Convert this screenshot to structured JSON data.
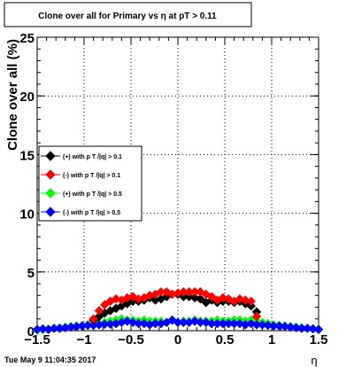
{
  "chart_data": {
    "type": "scatter",
    "title": "Clone  over all for Primary vs   η at pT > 0.11",
    "xlabel": "η",
    "ylabel": "Clone  over all (%)",
    "xlim": [
      -1.5,
      1.5
    ],
    "ylim": [
      0,
      25
    ],
    "x_ticks": [
      "−1.5",
      "−1",
      "−0.5",
      "0",
      "0.5",
      "1",
      "1.5"
    ],
    "y_ticks": [
      "0",
      "5",
      "10",
      "15",
      "20",
      "25"
    ],
    "grid": true,
    "legend_position": "left-middle",
    "series": [
      {
        "name": "(+) with p T /|q| > 0.1",
        "color": "#000000",
        "x": [
          -0.9,
          -0.84,
          -0.78,
          -0.72,
          -0.66,
          -0.6,
          -0.54,
          -0.48,
          -0.42,
          -0.36,
          -0.3,
          -0.24,
          -0.18,
          -0.12,
          -0.06,
          0.0,
          0.06,
          0.12,
          0.18,
          0.24,
          0.3,
          0.36,
          0.42,
          0.48,
          0.54,
          0.6,
          0.66,
          0.72,
          0.78,
          0.84
        ],
        "y": [
          0.9,
          1.2,
          1.5,
          1.7,
          1.9,
          2.1,
          2.3,
          2.5,
          2.5,
          2.6,
          2.8,
          2.6,
          2.7,
          2.9,
          3.1,
          3.1,
          2.9,
          2.9,
          2.8,
          2.7,
          2.4,
          2.6,
          2.4,
          2.5,
          2.5,
          2.4,
          2.5,
          2.3,
          2.1,
          1.6
        ]
      },
      {
        "name": "(-) with p T /|q| > 0.1",
        "color": "#ff0000",
        "x": [
          -0.9,
          -0.84,
          -0.78,
          -0.72,
          -0.66,
          -0.6,
          -0.54,
          -0.48,
          -0.42,
          -0.36,
          -0.3,
          -0.24,
          -0.18,
          -0.12,
          -0.06,
          0.0,
          0.06,
          0.12,
          0.18,
          0.24,
          0.3,
          0.36,
          0.42,
          0.48,
          0.54,
          0.6,
          0.66,
          0.72,
          0.78,
          0.84
        ],
        "y": [
          1.0,
          1.7,
          2.2,
          2.5,
          2.7,
          2.6,
          2.8,
          2.9,
          2.7,
          2.8,
          3.0,
          3.1,
          3.3,
          3.3,
          3.1,
          3.2,
          3.3,
          3.3,
          3.3,
          3.3,
          3.1,
          2.9,
          2.6,
          2.8,
          2.7,
          2.5,
          2.7,
          2.6,
          2.5,
          1.2
        ]
      },
      {
        "name": "(+) with p T /|q| > 0.5",
        "color": "#00ff00",
        "x": [
          -1.5,
          -1.44,
          -1.38,
          -1.32,
          -1.26,
          -1.2,
          -1.14,
          -1.08,
          -1.02,
          -0.96,
          -0.9,
          -0.84,
          -0.78,
          -0.72,
          -0.66,
          -0.6,
          -0.54,
          -0.48,
          -0.42,
          -0.36,
          -0.3,
          -0.24,
          -0.18,
          -0.12,
          -0.06,
          0.0,
          0.06,
          0.12,
          0.18,
          0.24,
          0.3,
          0.36,
          0.42,
          0.48,
          0.54,
          0.6,
          0.66,
          0.72,
          0.78,
          0.84,
          0.9,
          0.96,
          1.02,
          1.08,
          1.14,
          1.2,
          1.26,
          1.32,
          1.38,
          1.44,
          1.5
        ],
        "y": [
          0.05,
          0.1,
          0.15,
          0.2,
          0.25,
          0.3,
          0.35,
          0.4,
          0.45,
          0.5,
          0.55,
          0.6,
          0.7,
          0.8,
          0.9,
          1.0,
          0.9,
          0.9,
          0.8,
          0.9,
          0.8,
          0.8,
          0.8,
          0.7,
          0.9,
          0.7,
          0.8,
          0.8,
          0.9,
          0.8,
          0.8,
          0.8,
          0.9,
          0.8,
          0.8,
          0.9,
          0.9,
          0.8,
          0.9,
          0.8,
          0.7,
          0.6,
          0.5,
          0.45,
          0.4,
          0.35,
          0.3,
          0.25,
          0.2,
          0.15,
          0.1
        ]
      },
      {
        "name": "(-) with p T /|q| > 0.5",
        "color": "#0000ff",
        "x": [
          -1.5,
          -1.44,
          -1.38,
          -1.32,
          -1.26,
          -1.2,
          -1.14,
          -1.08,
          -1.02,
          -0.96,
          -0.9,
          -0.84,
          -0.78,
          -0.72,
          -0.66,
          -0.6,
          -0.54,
          -0.48,
          -0.42,
          -0.36,
          -0.3,
          -0.24,
          -0.18,
          -0.12,
          -0.06,
          0.0,
          0.06,
          0.12,
          0.18,
          0.24,
          0.3,
          0.36,
          0.42,
          0.48,
          0.54,
          0.6,
          0.66,
          0.72,
          0.78,
          0.84,
          0.9,
          0.96,
          1.02,
          1.08,
          1.14,
          1.2,
          1.26,
          1.32,
          1.38,
          1.44,
          1.5
        ],
        "y": [
          0.1,
          0.15,
          0.1,
          0.2,
          0.2,
          0.25,
          0.3,
          0.35,
          0.4,
          0.45,
          0.45,
          0.5,
          0.55,
          0.55,
          0.6,
          0.7,
          0.8,
          0.7,
          0.6,
          0.6,
          0.5,
          0.6,
          0.6,
          0.7,
          0.9,
          0.7,
          0.7,
          0.7,
          0.8,
          0.7,
          0.7,
          0.6,
          0.6,
          0.6,
          0.6,
          0.6,
          0.6,
          0.5,
          0.6,
          0.5,
          0.5,
          0.45,
          0.4,
          0.4,
          0.35,
          0.3,
          0.25,
          0.2,
          0.2,
          0.15,
          0.1
        ]
      }
    ]
  },
  "footer": {
    "timestamp": "Tue May  9 11:04:35 2017"
  }
}
